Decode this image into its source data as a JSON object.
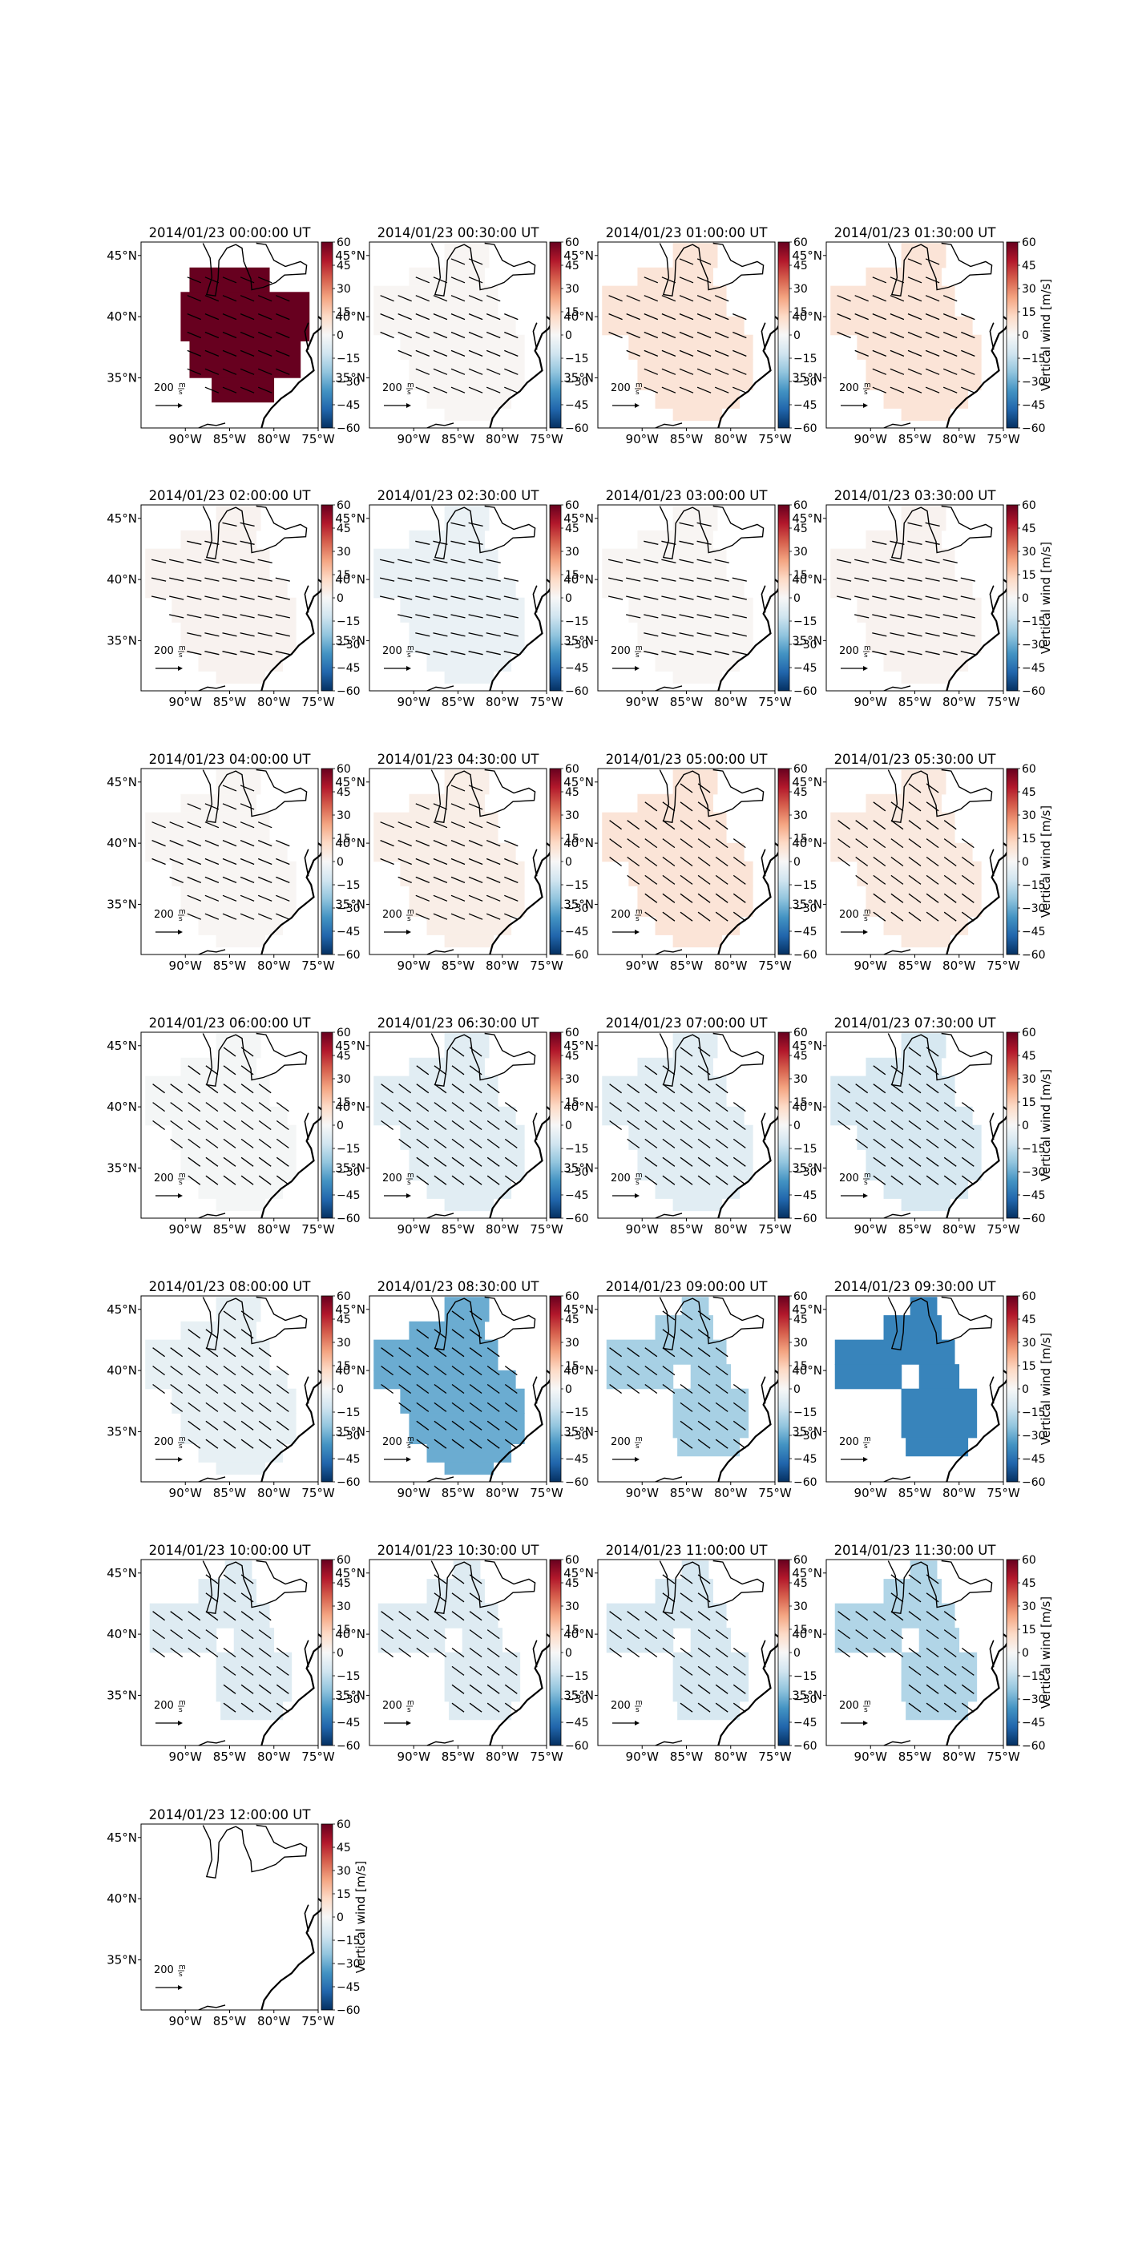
{
  "figure": {
    "colorbar": {
      "ticks": [
        "60",
        "45",
        "30",
        "15",
        "0",
        "−15",
        "−30",
        "−45",
        "−60"
      ],
      "label": "Vertical wind [m/s]"
    },
    "axes": {
      "lat_ticks": [
        "45°N",
        "40°N",
        "35°N"
      ],
      "lon_ticks": [
        "90°W",
        "85°W",
        "80°W",
        "75°W"
      ]
    },
    "quiver_key": {
      "value": "200",
      "units_top": "m",
      "units_bottom": "s"
    },
    "colors": {
      "vmax_red": "#67001f",
      "vmin_blue": "#053061",
      "zero_white": "#f7f7f7"
    },
    "panels": [
      {
        "title": "2014/01/23 00:00:00 UT",
        "vertical_wind": 60,
        "shape": "core",
        "arrows": "ese"
      },
      {
        "title": "2014/01/23 00:30:00 UT",
        "vertical_wind": 1,
        "shape": "full",
        "arrows": "ese"
      },
      {
        "title": "2014/01/23 01:00:00 UT",
        "vertical_wind": 8,
        "shape": "full",
        "arrows": "ese"
      },
      {
        "title": "2014/01/23 01:30:00 UT",
        "vertical_wind": 8,
        "shape": "full",
        "arrows": "ese"
      },
      {
        "title": "2014/01/23 02:00:00 UT",
        "vertical_wind": 2,
        "shape": "full",
        "arrows": "e"
      },
      {
        "title": "2014/01/23 02:30:00 UT",
        "vertical_wind": -4,
        "shape": "full",
        "arrows": "e"
      },
      {
        "title": "2014/01/23 03:00:00 UT",
        "vertical_wind": 1,
        "shape": "full",
        "arrows": "e"
      },
      {
        "title": "2014/01/23 03:30:00 UT",
        "vertical_wind": 2,
        "shape": "full",
        "arrows": "e"
      },
      {
        "title": "2014/01/23 04:00:00 UT",
        "vertical_wind": 1,
        "shape": "full",
        "arrows": "ese"
      },
      {
        "title": "2014/01/23 04:30:00 UT",
        "vertical_wind": 4,
        "shape": "full",
        "arrows": "ese"
      },
      {
        "title": "2014/01/23 05:00:00 UT",
        "vertical_wind": 8,
        "shape": "full",
        "arrows": "se"
      },
      {
        "title": "2014/01/23 05:30:00 UT",
        "vertical_wind": 6,
        "shape": "full",
        "arrows": "se"
      },
      {
        "title": "2014/01/23 06:00:00 UT",
        "vertical_wind": -1,
        "shape": "full",
        "arrows": "se"
      },
      {
        "title": "2014/01/23 06:30:00 UT",
        "vertical_wind": -7,
        "shape": "full",
        "arrows": "se"
      },
      {
        "title": "2014/01/23 07:00:00 UT",
        "vertical_wind": -7,
        "shape": "full",
        "arrows": "se"
      },
      {
        "title": "2014/01/23 07:30:00 UT",
        "vertical_wind": -10,
        "shape": "full",
        "arrows": "se"
      },
      {
        "title": "2014/01/23 08:00:00 UT",
        "vertical_wind": -5,
        "shape": "full",
        "arrows": "se"
      },
      {
        "title": "2014/01/23 08:30:00 UT",
        "vertical_wind": -30,
        "shape": "full",
        "arrows": "se"
      },
      {
        "title": "2014/01/23 09:00:00 UT",
        "vertical_wind": -20,
        "shape": "split",
        "arrows": "se"
      },
      {
        "title": "2014/01/23 09:30:00 UT",
        "vertical_wind": -40,
        "shape": "split",
        "arrows": "none"
      },
      {
        "title": "2014/01/23 10:00:00 UT",
        "vertical_wind": -8,
        "shape": "split",
        "arrows": "se"
      },
      {
        "title": "2014/01/23 10:30:00 UT",
        "vertical_wind": -8,
        "shape": "split",
        "arrows": "se"
      },
      {
        "title": "2014/01/23 11:00:00 UT",
        "vertical_wind": -10,
        "shape": "split",
        "arrows": "se"
      },
      {
        "title": "2014/01/23 11:30:00 UT",
        "vertical_wind": -18,
        "shape": "split",
        "arrows": "se"
      },
      {
        "title": "2014/01/23 12:00:00 UT",
        "vertical_wind": null,
        "shape": "none",
        "arrows": "none"
      }
    ]
  }
}
